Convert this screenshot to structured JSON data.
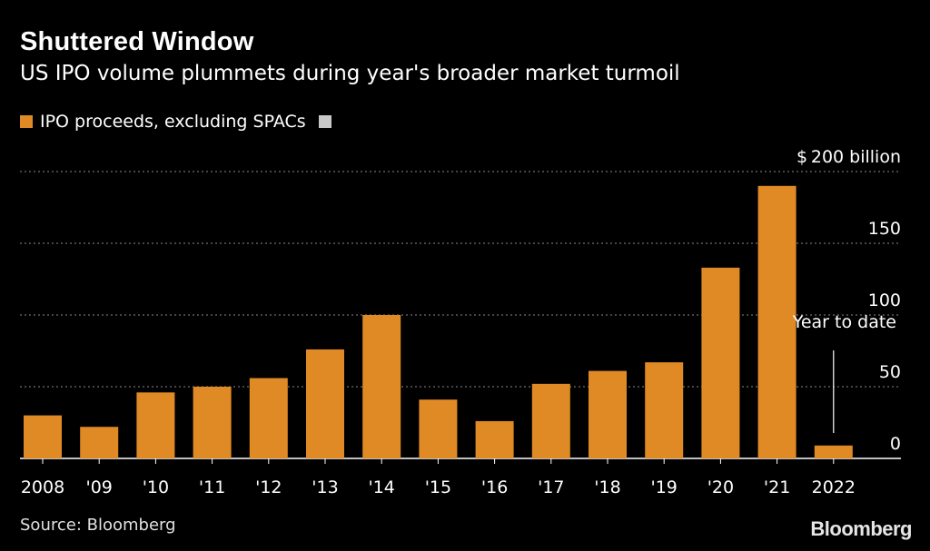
{
  "header": {
    "title": "Shuttered Window",
    "subtitle": "US IPO volume plummets during year's broader market turmoil"
  },
  "legend": {
    "items": [
      {
        "label": "IPO proceeds, excluding SPACs",
        "color": "#e08a26"
      },
      {
        "label": "",
        "color": "#c8c8c8"
      }
    ]
  },
  "colors": {
    "bar": "#e08a26",
    "grid": "#8a8a8a",
    "axis": "#ffffff",
    "background": "#000000"
  },
  "chart_data": {
    "type": "bar",
    "categories": [
      "2008",
      "'09",
      "'10",
      "'11",
      "'12",
      "'13",
      "'14",
      "'15",
      "'16",
      "'17",
      "'18",
      "'19",
      "'20",
      "'21",
      "2022"
    ],
    "series": [
      {
        "name": "IPO proceeds, excluding SPACs",
        "values": [
          30,
          22,
          46,
          50,
          56,
          76,
          100,
          41,
          26,
          52,
          61,
          67,
          133,
          190,
          9
        ]
      }
    ],
    "ylim": [
      0,
      200
    ],
    "yticks": [
      0,
      50,
      100,
      150,
      200
    ],
    "ytick_labels": [
      "0",
      "50",
      "100",
      "150",
      "$ 200 billion"
    ],
    "grid": true,
    "annotation": {
      "text": "Year to date",
      "category": "2022"
    }
  },
  "footer": {
    "source": "Source: Bloomberg",
    "brand": "Bloomberg"
  }
}
